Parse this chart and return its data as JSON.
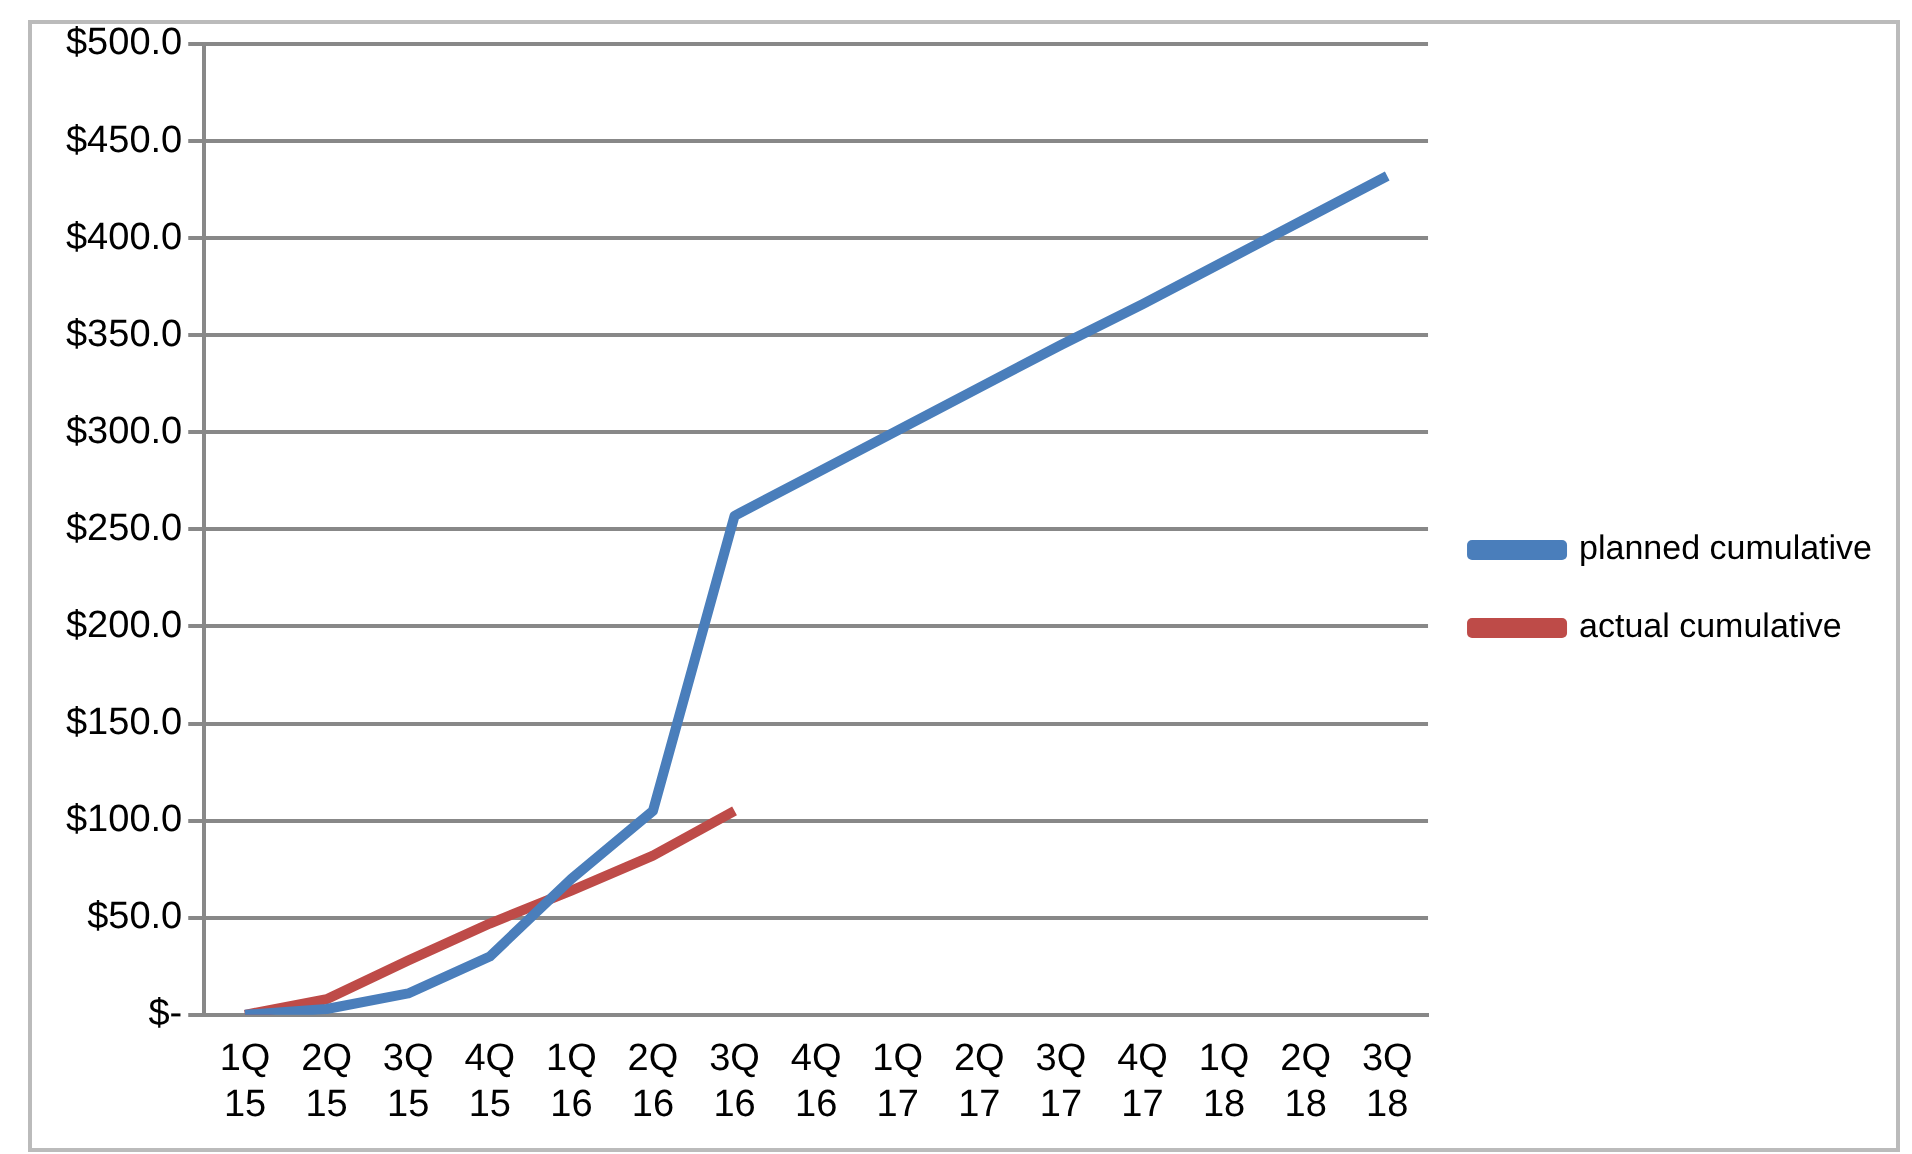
{
  "chart_data": {
    "type": "line",
    "categories": [
      "1Q\n15",
      "2Q\n15",
      "3Q\n15",
      "4Q\n15",
      "1Q\n16",
      "2Q\n16",
      "3Q\n16",
      "4Q\n16",
      "1Q\n17",
      "2Q\n17",
      "3Q\n17",
      "4Q\n17",
      "1Q\n18",
      "2Q\n18",
      "3Q\n18"
    ],
    "series": [
      {
        "name": "planned cumulative",
        "color": "#4a7ebb",
        "values": [
          0,
          3,
          11,
          30,
          70,
          105,
          257,
          279,
          301,
          323,
          345,
          366,
          388,
          410,
          432
        ]
      },
      {
        "name": "actual cumulative",
        "color": "#be4b48",
        "values": [
          0,
          8,
          28,
          47,
          64,
          82,
          105,
          null,
          null,
          null,
          null,
          null,
          null,
          null,
          null
        ]
      }
    ],
    "ylim": [
      0,
      500
    ],
    "yticks": [
      {
        "value": 0,
        "label": "$-"
      },
      {
        "value": 50,
        "label": "$50.0"
      },
      {
        "value": 100,
        "label": "$100.0"
      },
      {
        "value": 150,
        "label": "$150.0"
      },
      {
        "value": 200,
        "label": "$200.0"
      },
      {
        "value": 250,
        "label": "$250.0"
      },
      {
        "value": 300,
        "label": "$300.0"
      },
      {
        "value": 350,
        "label": "$350.0"
      },
      {
        "value": 400,
        "label": "$400.0"
      },
      {
        "value": 450,
        "label": "$450.0"
      },
      {
        "value": 500,
        "label": "$500.0"
      }
    ],
    "grid": "y",
    "legend": "right",
    "marker": "none",
    "line_style": "solid"
  }
}
